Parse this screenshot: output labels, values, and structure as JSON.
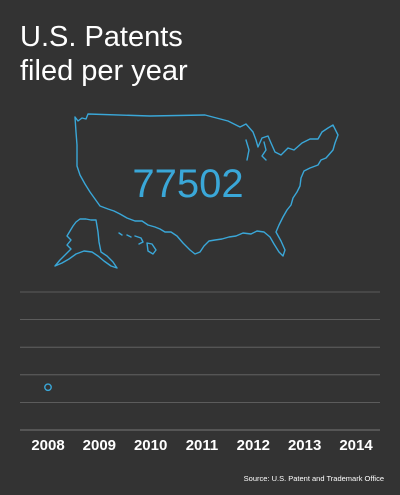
{
  "title_line1": "U.S. Patents",
  "title_line2": "filed per year",
  "map_icon": "usa-outline-map",
  "highlight_value": "77502",
  "source": "Source: U.S. Patent and Trademark Office",
  "colors": {
    "background": "#333333",
    "accent": "#3aa7d8",
    "grid": "#6a6a6a",
    "text": "#ffffff"
  },
  "chart_data": {
    "type": "scatter",
    "categories": [
      "2008",
      "2009",
      "2010",
      "2011",
      "2012",
      "2013",
      "2014"
    ],
    "series": [
      {
        "values": [
          77502,
          null,
          null,
          null,
          null,
          null,
          null
        ]
      }
    ],
    "title": "U.S. Patents filed per year",
    "xlabel": "",
    "ylabel": "",
    "ylim": [
      0,
      250000
    ],
    "grid": true,
    "legend": "none",
    "annotation": "77502"
  }
}
